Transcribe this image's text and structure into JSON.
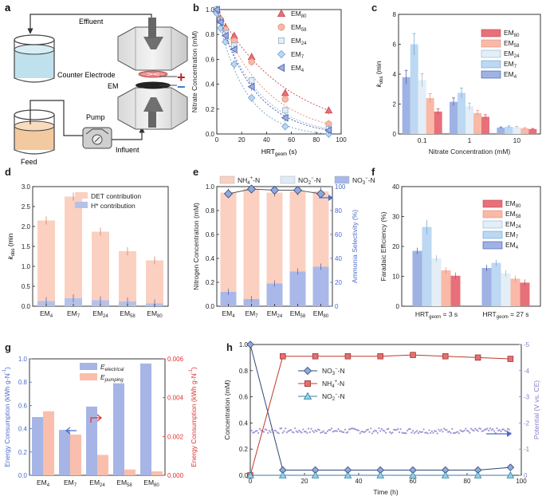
{
  "colors": {
    "em80": "#e7707a",
    "em58": "#f9b9a6",
    "em24": "#e3eef6",
    "em7": "#bcd8f2",
    "em4": "#9fb2e4",
    "em80_edge": "#c4484f",
    "em58_edge": "#e58b78",
    "em24_edge": "#8fb2cf",
    "em7_edge": "#6d9fd4",
    "em4_edge": "#3f56a8",
    "det": "#fbd0c0",
    "hplus": "#b4c2ea",
    "nh4": "#fbd0c0",
    "no2": "#dfeaf7",
    "no3": "#a9b8e8",
    "elec": "#a6b5e6",
    "pump": "#f9bfac",
    "accent_red": "#e23030",
    "accent_blue": "#4a6cc8",
    "potential": "#8c7bc9"
  },
  "panel_a": {
    "letter": "a",
    "labels": {
      "effluent": "Effluent",
      "counter": "Counter Electrode",
      "em": "EM",
      "pump": "Pump",
      "feed": "Feed",
      "influent": "Influent",
      "plus": "+",
      "minus": "−"
    }
  },
  "chart_data": [
    {
      "id": "b",
      "type": "scatter",
      "letter": "b",
      "xlabel": "HRT",
      "xlabel_sub": "geom",
      "xlabel_unit": " (s)",
      "ylabel": "Nitrate Concentration (mM)",
      "xlim": [
        0,
        100
      ],
      "ylim": [
        0,
        1.0
      ],
      "xticks": [
        "0",
        "20",
        "40",
        "60",
        "80",
        "100"
      ],
      "yticks": [
        "0.0",
        "0.2",
        "0.4",
        "0.6",
        "0.8",
        "1.0"
      ],
      "legend": [
        {
          "name": "EM",
          "sub": "80"
        },
        {
          "name": "EM",
          "sub": "58"
        },
        {
          "name": "EM",
          "sub": "24"
        },
        {
          "name": "EM",
          "sub": "7"
        },
        {
          "name": "EM",
          "sub": "4"
        }
      ],
      "series": [
        {
          "name": "EM80",
          "x": [
            0,
            3,
            7,
            14,
            28,
            55,
            90
          ],
          "y": [
            1.0,
            0.93,
            0.86,
            0.79,
            0.62,
            0.33,
            0.19
          ]
        },
        {
          "name": "EM58",
          "x": [
            0,
            3,
            7,
            14,
            28,
            55,
            90
          ],
          "y": [
            1.0,
            0.92,
            0.84,
            0.75,
            0.58,
            0.28,
            0.08
          ]
        },
        {
          "name": "EM24",
          "x": [
            0,
            3,
            7,
            14,
            28,
            55,
            90
          ],
          "y": [
            1.0,
            0.91,
            0.81,
            0.71,
            0.43,
            0.19,
            0.04
          ]
        },
        {
          "name": "EM7",
          "x": [
            0,
            3,
            7,
            14,
            28,
            55,
            90
          ],
          "y": [
            0.97,
            0.85,
            0.74,
            0.56,
            0.29,
            0.06,
            0.0
          ]
        },
        {
          "name": "EM4",
          "x": [
            0,
            3,
            7,
            14,
            28,
            55,
            90
          ],
          "y": [
            1.0,
            0.9,
            0.79,
            0.68,
            0.38,
            0.13,
            0.03
          ]
        }
      ]
    },
    {
      "id": "c",
      "type": "bar",
      "letter": "c",
      "xlabel": "Nitrate Concentration (mM)",
      "ylabel": "k",
      "ylabel_sub": "obs",
      "ylabel_unit": " (min",
      "ylim": [
        0,
        8
      ],
      "yticks": [
        "0",
        "2",
        "4",
        "6",
        "8"
      ],
      "categories": [
        "0.1",
        "1",
        "10"
      ],
      "legend": [
        {
          "name": "EM",
          "sub": "80"
        },
        {
          "name": "EM",
          "sub": "58"
        },
        {
          "name": "EM",
          "sub": "24"
        },
        {
          "name": "EM",
          "sub": "7"
        },
        {
          "name": "EM",
          "sub": "4"
        }
      ],
      "series": [
        {
          "name": "EM4",
          "values": [
            3.8,
            2.15,
            0.42
          ]
        },
        {
          "name": "EM7",
          "values": [
            6.0,
            2.75,
            0.48
          ]
        },
        {
          "name": "EM24",
          "values": [
            3.6,
            1.85,
            0.45
          ]
        },
        {
          "name": "EM58",
          "values": [
            2.4,
            1.4,
            0.38
          ]
        },
        {
          "name": "EM80",
          "values": [
            1.5,
            1.15,
            0.33
          ]
        }
      ]
    },
    {
      "id": "d",
      "type": "bar",
      "letter": "d",
      "ylabel": "k",
      "ylabel_sub": "obs",
      "ylabel_unit": " (min",
      "ylim": [
        0,
        3.0
      ],
      "yticks": [
        "0.0",
        "0.5",
        "1.0",
        "1.5",
        "2.0",
        "2.5",
        "3.0"
      ],
      "categories": [
        "EM",
        "EM",
        "EM",
        "EM",
        "EM"
      ],
      "category_subs": [
        "4",
        "7",
        "24",
        "58",
        "80"
      ],
      "legend": [
        "DET contribution",
        "H* contribution"
      ],
      "series": [
        {
          "name": "DET contribution",
          "values": [
            2.15,
            2.75,
            1.87,
            1.38,
            1.15
          ]
        },
        {
          "name": "H* contribution",
          "values": [
            0.13,
            0.2,
            0.15,
            0.12,
            0.07
          ]
        }
      ]
    },
    {
      "id": "e",
      "type": "bar",
      "letter": "e",
      "ylabel": "Nitrogen Concentration (mM)",
      "ylabel2": "Ammonia Selectivity (%)",
      "ylim": [
        0,
        1.0
      ],
      "y2lim": [
        0,
        100
      ],
      "yticks": [
        "0.0",
        "0.2",
        "0.4",
        "0.6",
        "0.8",
        "1.0"
      ],
      "y2ticks": [
        "0",
        "20",
        "40",
        "60",
        "80",
        "100"
      ],
      "categories": [
        "EM",
        "EM",
        "EM",
        "EM",
        "EM"
      ],
      "category_subs": [
        "4",
        "7",
        "24",
        "58",
        "80"
      ],
      "legend": [
        {
          "name": "NH",
          "sub": "4",
          "sup": "+",
          "tail": "-N"
        },
        {
          "name": "NO",
          "sub": "2",
          "sup": "−",
          "tail": "-N"
        },
        {
          "name": "NO",
          "sub": "3",
          "sup": "−",
          "tail": "-N"
        }
      ],
      "series": [
        {
          "name": "NO3-N",
          "values": [
            0.12,
            0.06,
            0.19,
            0.29,
            0.33
          ]
        },
        {
          "name": "NO2-N",
          "values": [
            0.0,
            0.0,
            0.0,
            0.0,
            0.0
          ]
        },
        {
          "name": "NH4-N",
          "values": [
            0.83,
            0.92,
            0.76,
            0.67,
            0.63
          ]
        },
        {
          "name": "Ammonia selectivity",
          "values": [
            94,
            98,
            97,
            97,
            94
          ]
        }
      ]
    },
    {
      "id": "f",
      "type": "bar",
      "letter": "f",
      "ylabel": "Faradaic Efficiency (%)",
      "ylim": [
        0,
        40
      ],
      "yticks": [
        "0",
        "10",
        "20",
        "30",
        "40"
      ],
      "categories": [
        "HRT",
        "HRT"
      ],
      "category_subs": [
        "geom",
        "geom"
      ],
      "category_tails": [
        " = 3 s",
        " = 27 s"
      ],
      "legend": [
        {
          "name": "EM",
          "sub": "80"
        },
        {
          "name": "EM",
          "sub": "58"
        },
        {
          "name": "EM",
          "sub": "24"
        },
        {
          "name": "EM",
          "sub": "7"
        },
        {
          "name": "EM",
          "sub": "4"
        }
      ],
      "series": [
        {
          "name": "EM4",
          "values": [
            18.5,
            12.8
          ]
        },
        {
          "name": "EM7",
          "values": [
            26.5,
            14.5
          ]
        },
        {
          "name": "EM24",
          "values": [
            16.0,
            11.0
          ]
        },
        {
          "name": "EM58",
          "values": [
            12.0,
            9.2
          ]
        },
        {
          "name": "EM80",
          "values": [
            10.2,
            7.9
          ]
        }
      ]
    },
    {
      "id": "g",
      "type": "bar",
      "letter": "g",
      "ylabel": "Energy Consumption (kWh g-N",
      "ylabel2": "Energy Consumption (kWh g-N",
      "ylim": [
        0,
        1.0
      ],
      "y2lim": [
        0,
        0.006
      ],
      "yticks": [
        "0.0",
        "0.2",
        "0.4",
        "0.6",
        "0.8",
        "1.0"
      ],
      "y2ticks": [
        "0.000",
        "0.002",
        "0.004",
        "0.006"
      ],
      "categories": [
        "EM",
        "EM",
        "EM",
        "EM",
        "EM"
      ],
      "category_subs": [
        "4",
        "7",
        "24",
        "58",
        "80"
      ],
      "legend": [
        {
          "name": "E",
          "sub": "electrical"
        },
        {
          "name": "E",
          "sub": "pumping"
        }
      ],
      "series": [
        {
          "name": "E_electrical",
          "values": [
            0.5,
            0.39,
            0.59,
            0.79,
            0.96
          ]
        },
        {
          "name": "E_pumping",
          "values": [
            0.0033,
            0.0021,
            0.00105,
            0.0003,
            0.0002
          ]
        }
      ]
    },
    {
      "id": "h",
      "type": "line",
      "letter": "h",
      "xlabel": "Time (h)",
      "ylabel": "Concentration (mM)",
      "ylabel2": "Potential (V vs. CE)",
      "xlim": [
        0,
        100
      ],
      "ylim": [
        0,
        1.0
      ],
      "y2lim": [
        -5,
        0
      ],
      "xticks": [
        "0",
        "20",
        "40",
        "60",
        "80",
        "100"
      ],
      "yticks": [
        "0.0",
        "0.2",
        "0.4",
        "0.6",
        "0.8",
        "1.0"
      ],
      "y2ticks": [
        "0",
        "-1",
        "-2",
        "-3",
        "-4",
        "-5"
      ],
      "legend": [
        {
          "name": "NO",
          "sub": "3",
          "sup": "−",
          "tail": "-N"
        },
        {
          "name": "NH",
          "sub": "4",
          "sup": "+",
          "tail": "-N"
        },
        {
          "name": "NO",
          "sub": "2",
          "sup": "−",
          "tail": "-N"
        }
      ],
      "series": [
        {
          "name": "NO3-N",
          "x": [
            0,
            12,
            24,
            36,
            48,
            60,
            72,
            84,
            96
          ],
          "y": [
            1.0,
            0.04,
            0.04,
            0.04,
            0.04,
            0.04,
            0.04,
            0.04,
            0.06
          ]
        },
        {
          "name": "NH4-N",
          "x": [
            0,
            12,
            24,
            36,
            48,
            60,
            72,
            84,
            96
          ],
          "y": [
            0.0,
            0.91,
            0.91,
            0.91,
            0.91,
            0.92,
            0.91,
            0.9,
            0.89
          ]
        },
        {
          "name": "NO2-N",
          "x": [
            0,
            12,
            24,
            36,
            48,
            60,
            72,
            84,
            96
          ],
          "y": [
            0.0,
            0.0,
            0.0,
            0.0,
            0.0,
            0.0,
            0.0,
            0.0,
            0.0
          ]
        },
        {
          "name": "Potential",
          "x_range": [
            0,
            96
          ],
          "y_level": -3.3,
          "noise": 0.1
        }
      ]
    }
  ]
}
